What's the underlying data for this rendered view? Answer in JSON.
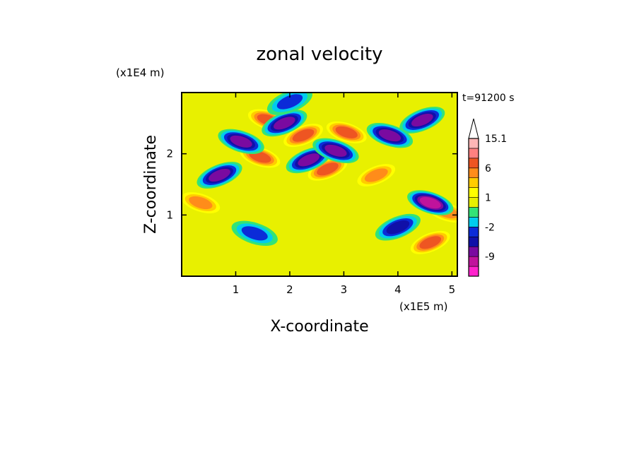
{
  "chart_data": {
    "type": "heatmap",
    "title": "zonal velocity",
    "xlabel": "X-coordinate",
    "ylabel": "Z-coordinate",
    "x_unit": "(x1E5 m)",
    "y_unit": "(x1E4 m)",
    "time_label": "t=91200 s",
    "xlim": [
      0,
      5.1
    ],
    "ylim": [
      0,
      3.0
    ],
    "x_ticks": [
      1,
      2,
      3,
      4,
      5
    ],
    "y_ticks": [
      1,
      2
    ],
    "x_tick_labels": [
      "1",
      "2",
      "3",
      "4",
      "5"
    ],
    "y_tick_labels": [
      "1",
      "2"
    ],
    "colorbar": {
      "levels": [
        -15,
        -12,
        -9,
        -6,
        -4,
        -2,
        -1,
        0,
        1,
        2,
        4,
        6,
        9,
        12,
        15.1
      ],
      "labels": [
        "15.1",
        "6",
        "1",
        "-2",
        "-9"
      ],
      "label_values": [
        15.1,
        6,
        1,
        -2,
        -9
      ],
      "colors": [
        "#ff22cc",
        "#c0139c",
        "#7a0aa0",
        "#1010a8",
        "#0b2bd8",
        "#00ccee",
        "#33e377",
        "#e8f000",
        "#ffff00",
        "#ffcc00",
        "#ff8c1a",
        "#ee5522",
        "#ff8080",
        "#ffb6b6"
      ],
      "extend_max_color": "#ffffff"
    },
    "features": [
      {
        "x": 1.6,
        "z": 2.55,
        "value": 8
      },
      {
        "x": 2.25,
        "z": 2.3,
        "value": 8
      },
      {
        "x": 3.05,
        "z": 2.35,
        "value": 7
      },
      {
        "x": 2.7,
        "z": 1.75,
        "value": 7
      },
      {
        "x": 1.45,
        "z": 1.95,
        "value": 7
      },
      {
        "x": 3.6,
        "z": 1.65,
        "value": 6
      },
      {
        "x": 0.35,
        "z": 1.2,
        "value": 6
      },
      {
        "x": 4.6,
        "z": 0.55,
        "value": 8
      },
      {
        "x": 4.9,
        "z": 1.05,
        "value": 6
      },
      {
        "x": 2.35,
        "z": 1.9,
        "value": -8
      },
      {
        "x": 2.85,
        "z": 2.05,
        "value": -9
      },
      {
        "x": 1.9,
        "z": 2.5,
        "value": -8
      },
      {
        "x": 1.1,
        "z": 2.2,
        "value": -8
      },
      {
        "x": 0.7,
        "z": 1.65,
        "value": -7
      },
      {
        "x": 4.6,
        "z": 1.2,
        "value": -12
      },
      {
        "x": 4.45,
        "z": 2.55,
        "value": -9
      },
      {
        "x": 3.85,
        "z": 2.3,
        "value": -7
      },
      {
        "x": 4.0,
        "z": 0.8,
        "value": -5
      },
      {
        "x": 1.35,
        "z": 0.7,
        "value": -3
      },
      {
        "x": 2.0,
        "z": 2.85,
        "value": -4
      }
    ]
  }
}
